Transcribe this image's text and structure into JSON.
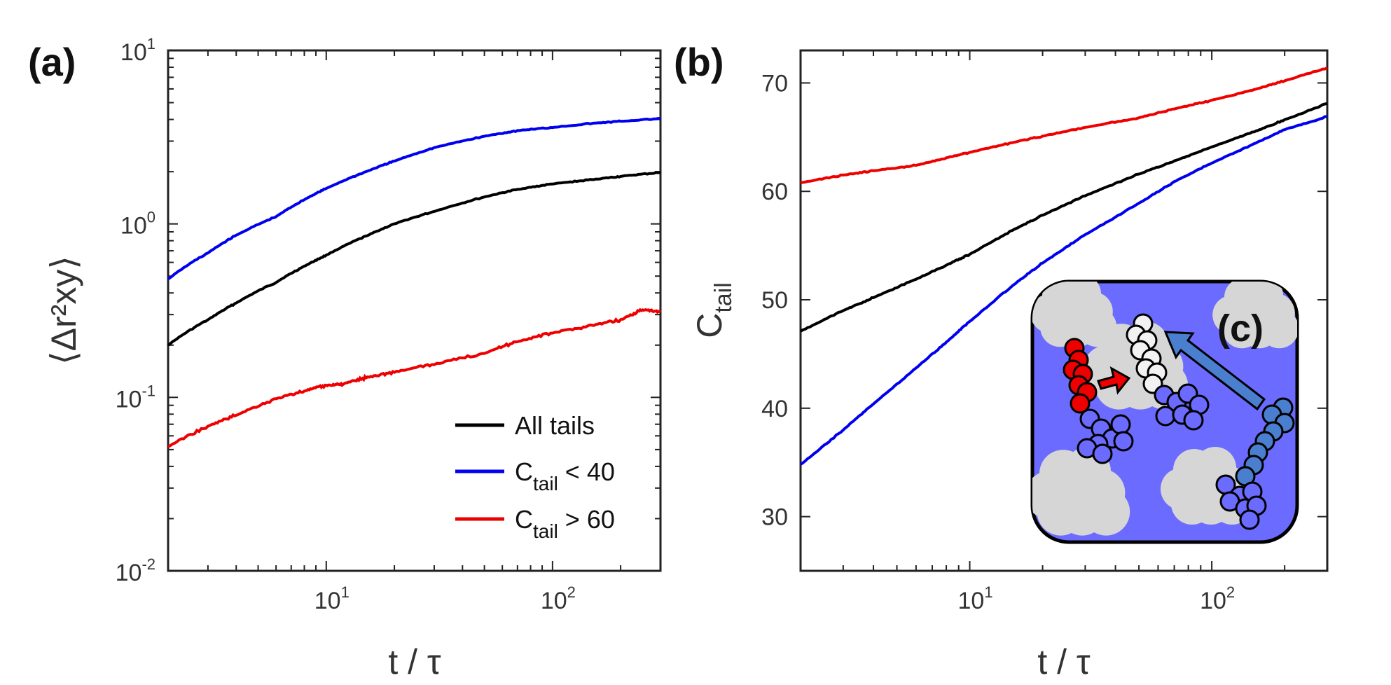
{
  "panels": {
    "a": "(a)",
    "b": "(b)",
    "c": "(c)"
  },
  "colors": {
    "all": "#000000",
    "low": "#0000ee",
    "high": "#ee0000",
    "inset_bg": "#6b6bff",
    "cloud": "#d6d6d6"
  },
  "chart_data": [
    {
      "type": "line",
      "panel": "(a)",
      "xscale": "log",
      "yscale": "log",
      "xlim": [
        2,
        300
      ],
      "ylim": [
        0.01,
        10
      ],
      "xlabel": "t / τ",
      "ylabel": "⟨Δr²xy⟩",
      "x_ticks": [
        {
          "base": "10",
          "exp": "1",
          "value": 10
        },
        {
          "base": "10",
          "exp": "2",
          "value": 100
        }
      ],
      "y_ticks": [
        {
          "base": "10",
          "exp": "-2",
          "value": 0.01
        },
        {
          "base": "10",
          "exp": "-1",
          "value": 0.1
        },
        {
          "base": "10",
          "exp": "0",
          "value": 1
        },
        {
          "base": "10",
          "exp": "1",
          "value": 10
        }
      ],
      "legend_position": "bottom-right",
      "legend": [
        {
          "main": "All tails",
          "sub": "",
          "rest": "",
          "color": "#000000"
        },
        {
          "main": "C",
          "sub": "tail",
          "rest": " < 40",
          "color": "#0000ee"
        },
        {
          "main": "C",
          "sub": "tail",
          "rest": " > 60",
          "color": "#ee0000"
        }
      ],
      "series": [
        {
          "color": "#000000",
          "x": [
            2,
            3,
            4,
            6,
            8,
            10,
            15,
            20,
            30,
            50,
            70,
            100,
            150,
            200,
            300
          ],
          "y": [
            0.2,
            0.28,
            0.35,
            0.46,
            0.57,
            0.66,
            0.85,
            1.0,
            1.18,
            1.43,
            1.58,
            1.7,
            1.8,
            1.88,
            1.98
          ]
        },
        {
          "color": "#0000ee",
          "x": [
            2,
            3,
            4,
            6,
            8,
            10,
            15,
            20,
            30,
            50,
            70,
            100,
            150,
            200,
            300
          ],
          "y": [
            0.48,
            0.68,
            0.86,
            1.1,
            1.38,
            1.6,
            2.0,
            2.3,
            2.75,
            3.2,
            3.45,
            3.6,
            3.8,
            3.9,
            4.05
          ]
        },
        {
          "color": "#ee0000",
          "x": [
            2,
            3,
            4,
            6,
            8,
            10,
            12,
            15,
            20,
            30,
            50,
            70,
            100,
            150,
            200,
            250,
            300
          ],
          "y": [
            0.052,
            0.068,
            0.079,
            0.098,
            0.109,
            0.117,
            0.12,
            0.13,
            0.14,
            0.155,
            0.18,
            0.21,
            0.235,
            0.26,
            0.28,
            0.32,
            0.31
          ]
        }
      ]
    },
    {
      "type": "line",
      "panel": "(b)",
      "xscale": "log",
      "yscale": "linear",
      "xlim": [
        2,
        300
      ],
      "ylim": [
        25,
        73
      ],
      "xlabel": "t / τ",
      "ylabel_main": "C",
      "ylabel_sub": "tail",
      "x_ticks": [
        {
          "base": "10",
          "exp": "1",
          "value": 10
        },
        {
          "base": "10",
          "exp": "2",
          "value": 100
        }
      ],
      "y_ticks": [
        30,
        40,
        50,
        60,
        70
      ],
      "series": [
        {
          "color": "#000000",
          "x": [
            2,
            3,
            4,
            6,
            8,
            10,
            15,
            20,
            30,
            50,
            70,
            100,
            150,
            200,
            300
          ],
          "y": [
            47.1,
            49.0,
            50.2,
            51.9,
            53.2,
            54.2,
            56.4,
            57.8,
            59.6,
            61.6,
            62.8,
            64.1,
            65.5,
            66.6,
            68.1
          ]
        },
        {
          "color": "#0000ee",
          "x": [
            2,
            3,
            4,
            6,
            8,
            10,
            15,
            20,
            30,
            50,
            70,
            100,
            150,
            200,
            300
          ],
          "y": [
            34.8,
            38.0,
            40.4,
            43.7,
            46.1,
            48.0,
            51.3,
            53.4,
            56.0,
            58.9,
            60.9,
            62.6,
            64.4,
            65.7,
            66.9
          ]
        },
        {
          "color": "#ee0000",
          "x": [
            2,
            3,
            4,
            6,
            8,
            10,
            15,
            20,
            30,
            50,
            70,
            100,
            150,
            200,
            300
          ],
          "y": [
            60.8,
            61.5,
            61.9,
            62.4,
            63.1,
            63.6,
            64.5,
            65.1,
            65.9,
            66.8,
            67.6,
            68.4,
            69.4,
            70.2,
            71.4
          ]
        }
      ]
    }
  ]
}
